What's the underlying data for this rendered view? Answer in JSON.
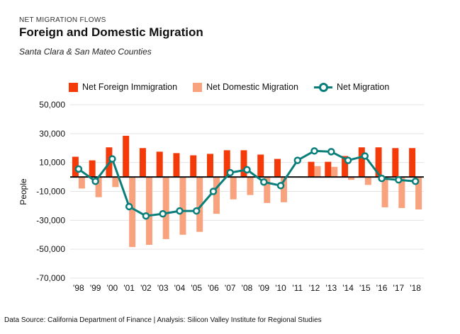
{
  "header": {
    "kicker": "NET MIGRATION FLOWS",
    "title": "Foreign and Domestic Migration",
    "subtitle": "Santa Clara & San Mateo Counties"
  },
  "footer": {
    "source": "Data Source: California Department of Finance | Analysis: Silicon Valley Institute for Regional Studies"
  },
  "colors": {
    "foreign": "#f53a0a",
    "domestic": "#f9a27e",
    "net": "#0a7f7a",
    "grid": "#e3e3e3",
    "zero_line": "#111111"
  },
  "chart_data": {
    "type": "bar",
    "ylabel": "People",
    "xlabel": "",
    "ylim": [
      -70000,
      50000
    ],
    "yticks": [
      50000,
      30000,
      10000,
      -10000,
      -30000,
      -50000,
      -70000
    ],
    "ytick_labels": [
      "50,000",
      "30,000",
      "10,000",
      "-10,000",
      "-30,000",
      "-50,000",
      "-70,000"
    ],
    "grid": true,
    "legend_position": "top",
    "categories": [
      "'98",
      "'99",
      "'00",
      "'01",
      "'02",
      "'03",
      "'04",
      "'05",
      "'06",
      "'07",
      "'08",
      "'09",
      "'10",
      "'11",
      "'12",
      "'13",
      "'14",
      "'15",
      "'16",
      "'17",
      "'18"
    ],
    "series": [
      {
        "name": "Net Foreign Immigration",
        "type": "bar",
        "values": [
          14000,
          11500,
          20500,
          28500,
          20000,
          17500,
          16500,
          15000,
          16000,
          18500,
          18500,
          15500,
          12500,
          0,
          10500,
          10500,
          14500,
          20500,
          20500,
          20000,
          20000
        ]
      },
      {
        "name": "Net Domestic Migration",
        "type": "bar",
        "values": [
          -8000,
          -14000,
          -7000,
          -48500,
          -47000,
          -43000,
          -40000,
          -38000,
          -25500,
          -15500,
          -12500,
          -18000,
          -17500,
          500,
          7500,
          7000,
          -2000,
          -5500,
          -21000,
          -21500,
          -22500
        ]
      },
      {
        "name": "Net Migration",
        "type": "line",
        "values": [
          5500,
          -3000,
          12500,
          -20500,
          -27000,
          -25500,
          -23500,
          -23500,
          -10000,
          3000,
          5000,
          -3500,
          -6000,
          11500,
          18000,
          17500,
          11500,
          14500,
          -1000,
          -2000,
          -3000
        ]
      }
    ]
  }
}
